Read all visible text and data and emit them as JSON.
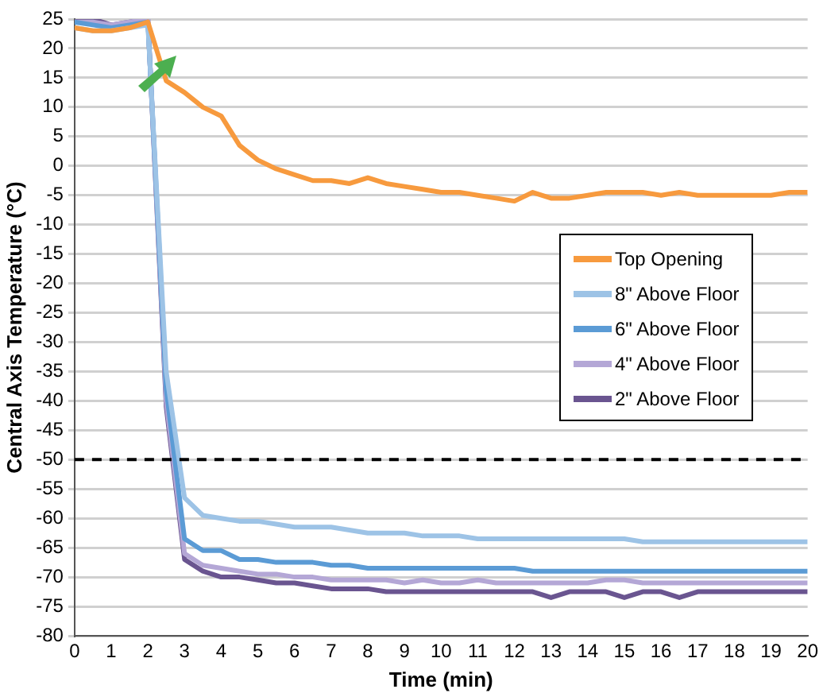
{
  "chart_data": {
    "type": "line",
    "xlabel": "Time (min)",
    "ylabel": "Central Axis Temperature (°C)",
    "x": [
      0,
      0.5,
      1,
      1.5,
      2,
      2.5,
      3,
      3.5,
      4,
      4.5,
      5,
      5.5,
      6,
      6.5,
      7,
      7.5,
      8,
      8.5,
      9,
      9.5,
      10,
      10.5,
      11,
      11.5,
      12,
      12.5,
      13,
      13.5,
      14,
      14.5,
      15,
      15.5,
      16,
      16.5,
      17,
      17.5,
      18,
      18.5,
      19,
      19.5,
      20
    ],
    "series": [
      {
        "name": "Top Opening",
        "color": "#f79a3e",
        "values": [
          23.5,
          23,
          23,
          23.5,
          24.5,
          14.5,
          12.5,
          10,
          8.5,
          3.5,
          1,
          -0.5,
          -1.5,
          -2.5,
          -2.5,
          -3,
          -2,
          -3,
          -3.5,
          -4,
          -4.5,
          -4.5,
          -5,
          -5.5,
          -6,
          -4.5,
          -5.5,
          -5.5,
          -5,
          -4.5,
          -4.5,
          -4.5,
          -5,
          -4.5,
          -5,
          -5,
          -5,
          -5,
          -5,
          -4.5,
          -4.5
        ]
      },
      {
        "name": "8\" Above Floor",
        "color": "#9dc3e6",
        "values": [
          23.5,
          23,
          23,
          23.5,
          24,
          -35,
          -56.5,
          -59.5,
          -60,
          -60.5,
          -60.5,
          -61,
          -61.5,
          -61.5,
          -61.5,
          -62,
          -62.5,
          -62.5,
          -62.5,
          -63,
          -63,
          -63,
          -63.5,
          -63.5,
          -63.5,
          -63.5,
          -63.5,
          -63.5,
          -63.5,
          -63.5,
          -63.5,
          -64,
          -64,
          -64,
          -64,
          -64,
          -64,
          -64,
          -64,
          -64,
          -64
        ]
      },
      {
        "name": "6\" Above Floor",
        "color": "#5b9bd5",
        "values": [
          24.5,
          24,
          23.5,
          24,
          24.5,
          -38,
          -63.5,
          -65.5,
          -65.5,
          -67,
          -67,
          -67.5,
          -67.5,
          -67.5,
          -68,
          -68,
          -68.5,
          -68.5,
          -68.5,
          -68.5,
          -68.5,
          -68.5,
          -68.5,
          -68.5,
          -68.5,
          -69,
          -69,
          -69,
          -69,
          -69,
          -69,
          -69,
          -69,
          -69,
          -69,
          -69,
          -69,
          -69,
          -69,
          -69,
          -69
        ]
      },
      {
        "name": "4\" Above Floor",
        "color": "#b4a7d6",
        "values": [
          24.5,
          24.5,
          24,
          24.5,
          25,
          -40,
          -66,
          -68,
          -68.5,
          -69,
          -69.5,
          -69.5,
          -70,
          -70,
          -70.5,
          -70.5,
          -70.5,
          -70.5,
          -71,
          -70.5,
          -71,
          -71,
          -70.5,
          -71,
          -71,
          -71,
          -71,
          -71,
          -71,
          -70.5,
          -70.5,
          -71,
          -71,
          -71,
          -71,
          -71,
          -71,
          -71,
          -71,
          -71,
          -71
        ]
      },
      {
        "name": "2\" Above Floor",
        "color": "#6a5590",
        "values": [
          25,
          25,
          24,
          24.5,
          25,
          -41,
          -67,
          -69,
          -70,
          -70,
          -70.5,
          -71,
          -71,
          -71.5,
          -72,
          -72,
          -72,
          -72.5,
          -72.5,
          -72.5,
          -72.5,
          -72.5,
          -72.5,
          -72.5,
          -72.5,
          -72.5,
          -73.5,
          -72.5,
          -72.5,
          -72.5,
          -73.5,
          -72.5,
          -72.5,
          -73.5,
          -72.5,
          -72.5,
          -72.5,
          -72.5,
          -72.5,
          -72.5,
          -72.5
        ]
      }
    ],
    "xlim": [
      0,
      20
    ],
    "xticks": [
      0,
      1,
      2,
      3,
      4,
      5,
      6,
      7,
      8,
      9,
      10,
      11,
      12,
      13,
      14,
      15,
      16,
      17,
      18,
      19,
      20
    ],
    "ylim": [
      -80,
      25
    ],
    "yticks": [
      -80,
      -75,
      -70,
      -65,
      -60,
      -55,
      -50,
      -45,
      -40,
      -35,
      -30,
      -25,
      -20,
      -15,
      -10,
      -5,
      0,
      5,
      10,
      15,
      20,
      25
    ],
    "ref_lines": [
      {
        "axis": "y",
        "value": -50,
        "color": "#000000",
        "line_style": "dashed"
      }
    ],
    "grid": "y",
    "legend": "right",
    "marker": "none",
    "line_style": "solid"
  }
}
